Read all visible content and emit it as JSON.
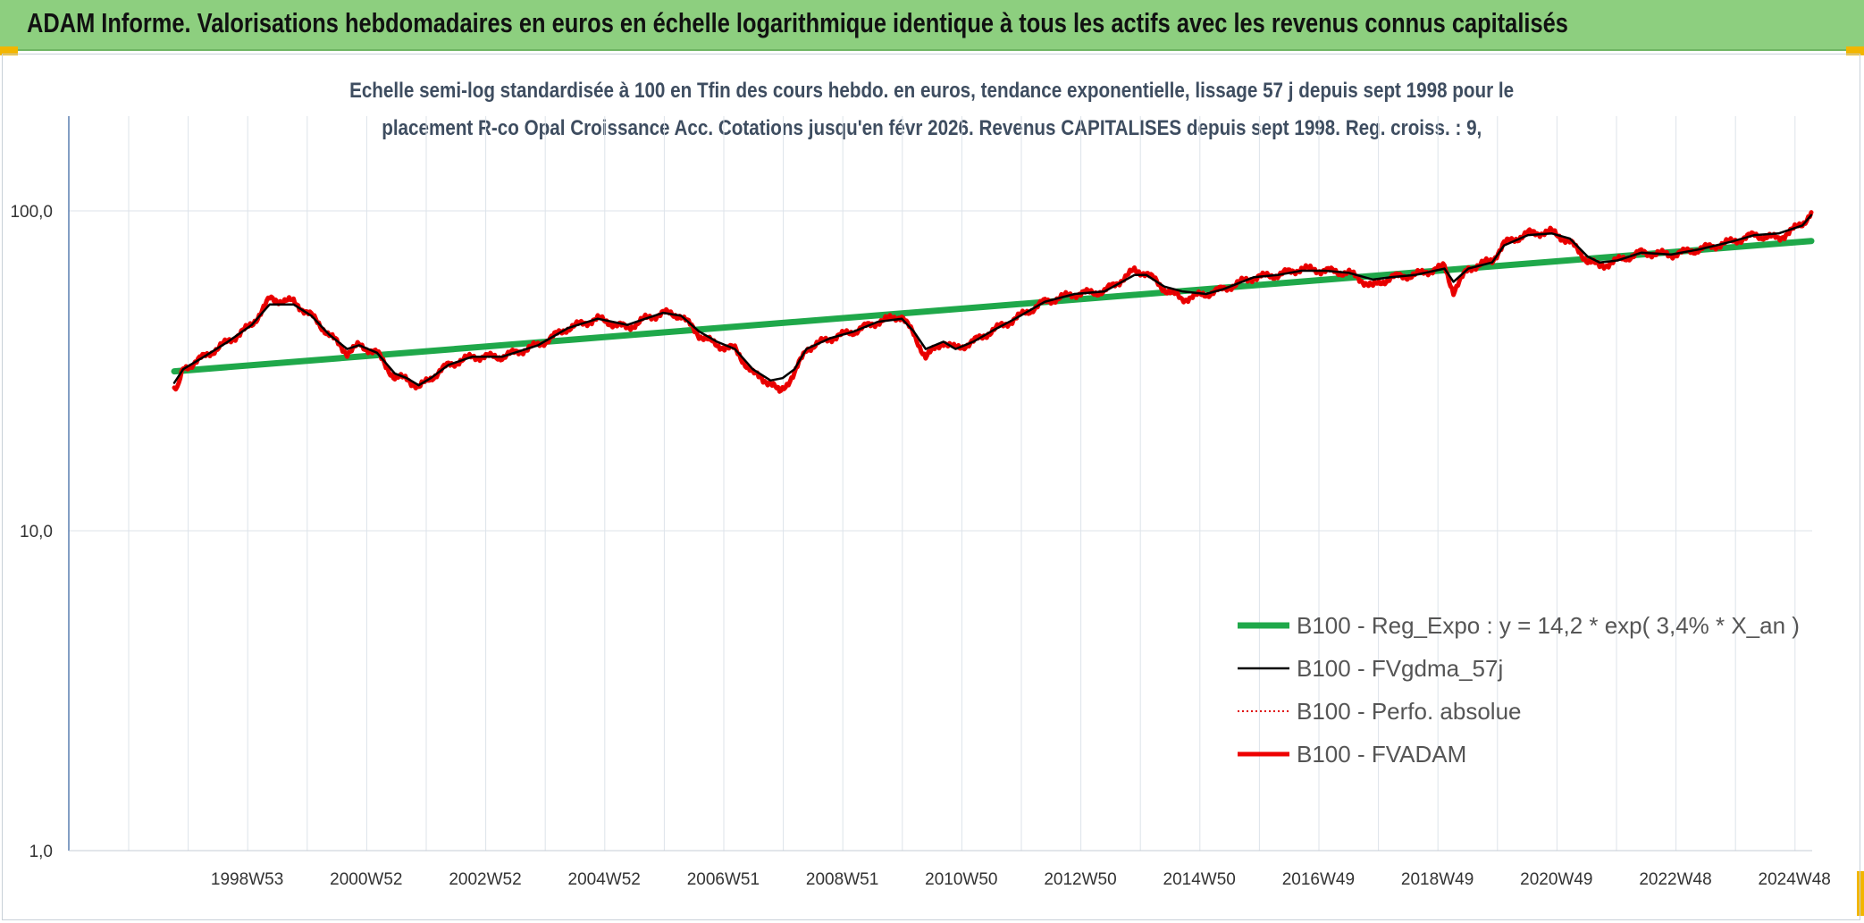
{
  "header": {
    "title": "ADAM Informe. Valorisations hebdomadaires en euros en échelle logarithmique identique à tous les actifs avec les revenus connus capitalisés"
  },
  "colors": {
    "banner": "#8dcf7f",
    "corner": "#f2b600",
    "regression": "#1fa84a",
    "smoothed": "#000000",
    "absolute": "#e00000",
    "fvadam": "#ee0000",
    "grid": "#dde3ea",
    "axis": "#5a7fb0"
  },
  "chart_data": {
    "type": "line",
    "title_line1": "Echelle semi-log standardisée à 100 en Tfin des cours hebdo. en euros, tendance exponentielle, lissage 57 j depuis sept 1998 pour le",
    "title_line2": "placement R-co Opal Croissance Acc. Cotations jusqu'en févr 2026. Revenus CAPITALISES depuis sept 1998. Reg. croiss. : 9,",
    "y_scale": "log",
    "ylim": [
      1,
      100
    ],
    "x_range": [
      1998.7,
      2026.15
    ],
    "yticks": [
      {
        "value": 100,
        "label": "100,0"
      },
      {
        "value": 10,
        "label": "10,0"
      },
      {
        "value": 1,
        "label": "1,0"
      }
    ],
    "xticks": [
      {
        "value": 1999.0,
        "label": "1998W53"
      },
      {
        "value": 2001.0,
        "label": "2000W52"
      },
      {
        "value": 2003.0,
        "label": "2002W52"
      },
      {
        "value": 2005.0,
        "label": "2004W52"
      },
      {
        "value": 2007.0,
        "label": "2006W51"
      },
      {
        "value": 2009.0,
        "label": "2008W51"
      },
      {
        "value": 2011.0,
        "label": "2010W50"
      },
      {
        "value": 2013.0,
        "label": "2012W50"
      },
      {
        "value": 2015.0,
        "label": "2014W50"
      },
      {
        "value": 2017.0,
        "label": "2016W49"
      },
      {
        "value": 2019.0,
        "label": "2018W49"
      },
      {
        "value": 2021.0,
        "label": "2020W49"
      },
      {
        "value": 2023.0,
        "label": "2022W48"
      },
      {
        "value": 2025.0,
        "label": "2024W48"
      }
    ],
    "grid": true,
    "legend_position": "bottom-right",
    "series": [
      {
        "name": "B100 - Reg_Expo : y = 14,2 * exp( 3,4% *  X_an )",
        "style": "thick-solid",
        "x": [
          1998.7,
          2026.15
        ],
        "y": [
          31.5,
          80.5
        ]
      },
      {
        "name": "B100 - FVgdma_57j",
        "style": "thin-solid",
        "x": [
          1998.7,
          1998.85,
          1999.2,
          1999.6,
          2000.0,
          2000.3,
          2000.7,
          2001.0,
          2001.3,
          2001.6,
          2001.8,
          2002.1,
          2002.4,
          2002.6,
          2002.8,
          2003.0,
          2003.3,
          2003.7,
          2004.2,
          2004.8,
          2005.3,
          2005.8,
          2006.3,
          2006.6,
          2006.9,
          2007.2,
          2007.5,
          2007.8,
          2008.1,
          2008.4,
          2008.7,
          2008.9,
          2009.1,
          2009.3,
          2009.7,
          2010.1,
          2010.5,
          2010.9,
          2011.1,
          2011.3,
          2011.6,
          2011.8,
          2012.1,
          2012.4,
          2012.8,
          2013.3,
          2013.8,
          2014.3,
          2014.8,
          2015.0,
          2015.3,
          2015.6,
          2016.0,
          2016.3,
          2016.8,
          2017.2,
          2017.6,
          2018.0,
          2018.4,
          2018.8,
          2019.1,
          2019.5,
          2020.0,
          2020.15,
          2020.4,
          2020.8,
          2021.0,
          2021.4,
          2021.8,
          2022.1,
          2022.4,
          2022.6,
          2022.9,
          2023.3,
          2023.8,
          2024.3,
          2024.8,
          2025.2,
          2025.6,
          2026.0,
          2026.15
        ],
        "y": [
          29,
          32,
          35,
          39,
          44,
          51,
          51,
          47,
          41,
          37,
          38,
          36,
          31,
          30,
          28.5,
          30,
          33,
          35,
          35,
          38,
          43,
          46,
          44,
          46,
          48,
          47,
          42,
          39,
          37,
          32,
          29.5,
          30,
          32,
          37,
          40,
          42,
          45,
          46,
          42,
          37,
          39,
          37,
          39,
          42,
          46,
          52,
          55,
          56,
          63,
          63,
          58,
          56,
          55,
          57,
          62,
          63,
          65,
          65,
          64,
          61,
          62,
          63,
          66,
          60,
          66,
          69,
          78,
          84,
          85,
          82,
          72,
          69,
          70,
          74,
          73,
          76,
          80,
          84,
          85,
          90,
          97
        ]
      },
      {
        "name": "B100 - Perfo. absolue",
        "style": "dotted",
        "x": [
          1998.7,
          1998.75,
          1998.85,
          1999.2,
          1999.6,
          2000.0,
          2000.3,
          2000.7,
          2001.0,
          2001.3,
          2001.6,
          2001.8,
          2002.1,
          2002.4,
          2002.6,
          2002.8,
          2003.0,
          2003.3,
          2003.7,
          2004.2,
          2004.8,
          2005.3,
          2005.8,
          2006.3,
          2006.6,
          2006.9,
          2007.2,
          2007.5,
          2007.8,
          2008.1,
          2008.4,
          2008.7,
          2008.85,
          2009.1,
          2009.3,
          2009.7,
          2010.1,
          2010.5,
          2010.9,
          2011.1,
          2011.3,
          2011.6,
          2011.8,
          2012.1,
          2012.4,
          2012.8,
          2013.3,
          2013.8,
          2014.3,
          2014.8,
          2015.0,
          2015.3,
          2015.6,
          2016.0,
          2016.3,
          2016.8,
          2017.2,
          2017.6,
          2018.0,
          2018.4,
          2018.8,
          2019.1,
          2019.5,
          2020.0,
          2020.15,
          2020.4,
          2020.8,
          2021.0,
          2021.4,
          2021.8,
          2022.1,
          2022.4,
          2022.6,
          2022.9,
          2023.3,
          2023.8,
          2024.3,
          2024.8,
          2025.2,
          2025.6,
          2026.0,
          2026.15
        ],
        "y": [
          28,
          27.5,
          32,
          35,
          39,
          44,
          53,
          52,
          47,
          41,
          36,
          38,
          36,
          30,
          30,
          28,
          30,
          33,
          35,
          35,
          38,
          43,
          46,
          43,
          46,
          48,
          47,
          41,
          38,
          37,
          31,
          29,
          27,
          31,
          37,
          40,
          42,
          45,
          47,
          41,
          35,
          39,
          37,
          39,
          42,
          46,
          52,
          55,
          56,
          65,
          64,
          57,
          53,
          55,
          57,
          62,
          63,
          66,
          65,
          64,
          58,
          62,
          63,
          67,
          56,
          66,
          70,
          79,
          85,
          86,
          80,
          70,
          67,
          70,
          74,
          73,
          76,
          80,
          84,
          82,
          91,
          99
        ]
      },
      {
        "name": "B100 - FVADAM",
        "style": "thick-solid",
        "x": [
          1998.7,
          1998.75,
          1998.85,
          1999.2,
          1999.6,
          2000.0,
          2000.3,
          2000.7,
          2001.0,
          2001.3,
          2001.6,
          2001.8,
          2002.1,
          2002.4,
          2002.6,
          2002.8,
          2003.0,
          2003.3,
          2003.7,
          2004.2,
          2004.8,
          2005.3,
          2005.8,
          2006.3,
          2006.6,
          2006.9,
          2007.2,
          2007.5,
          2007.8,
          2008.1,
          2008.4,
          2008.7,
          2008.85,
          2009.1,
          2009.3,
          2009.7,
          2010.1,
          2010.5,
          2010.9,
          2011.1,
          2011.3,
          2011.6,
          2011.8,
          2012.1,
          2012.4,
          2012.8,
          2013.3,
          2013.8,
          2014.3,
          2014.8,
          2015.0,
          2015.3,
          2015.6,
          2016.0,
          2016.3,
          2016.8,
          2017.2,
          2017.6,
          2018.0,
          2018.4,
          2018.8,
          2019.1,
          2019.5,
          2020.0,
          2020.15,
          2020.4,
          2020.8,
          2021.0,
          2021.4,
          2021.8,
          2022.1,
          2022.4,
          2022.6,
          2022.9,
          2023.3,
          2023.8,
          2024.3,
          2024.8,
          2025.2,
          2025.6,
          2026.0,
          2026.15
        ],
        "y": [
          28,
          27.5,
          32,
          35,
          39,
          44,
          53,
          52,
          47,
          41,
          36,
          38,
          36,
          30,
          30,
          28,
          30,
          33,
          35,
          35,
          38,
          43,
          46,
          43,
          46,
          48,
          47,
          41,
          38,
          37,
          31,
          29,
          27,
          31,
          37,
          40,
          42,
          45,
          47,
          41,
          35,
          39,
          37,
          39,
          42,
          46,
          52,
          55,
          56,
          65,
          64,
          57,
          53,
          55,
          57,
          62,
          63,
          66,
          65,
          64,
          58,
          62,
          63,
          67,
          56,
          66,
          70,
          79,
          85,
          86,
          80,
          70,
          67,
          70,
          74,
          73,
          76,
          80,
          84,
          82,
          91,
          99
        ]
      }
    ]
  }
}
